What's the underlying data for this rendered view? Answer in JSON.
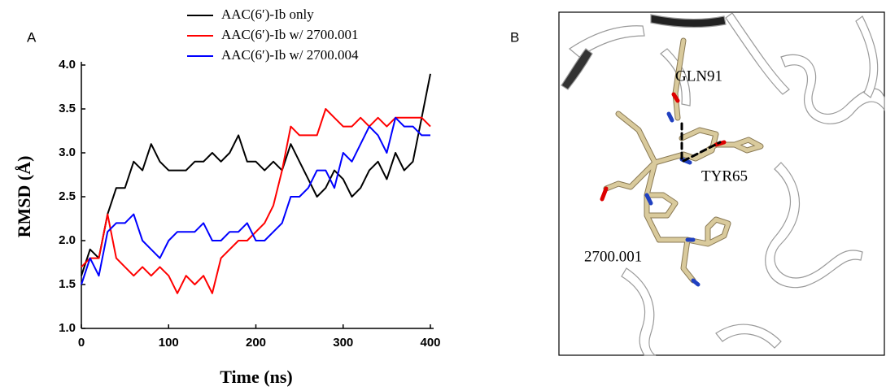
{
  "panel_labels": [
    "A",
    "B"
  ],
  "chart_data": {
    "type": "line",
    "x_label": "Time (ns)",
    "y_label": "RMSD (Å)",
    "x": [
      0,
      10,
      20,
      30,
      40,
      50,
      60,
      70,
      80,
      90,
      100,
      110,
      120,
      130,
      140,
      150,
      160,
      170,
      180,
      190,
      200,
      210,
      220,
      230,
      240,
      250,
      260,
      270,
      280,
      290,
      300,
      310,
      320,
      330,
      340,
      350,
      360,
      370,
      380,
      390,
      400
    ],
    "series": [
      {
        "name": "AAC(6′)-Ib only",
        "color": "#000000",
        "values": [
          1.6,
          1.9,
          1.8,
          2.3,
          2.6,
          2.6,
          2.9,
          2.8,
          3.1,
          2.9,
          2.8,
          2.8,
          2.8,
          2.9,
          2.9,
          3.0,
          2.9,
          3.0,
          3.2,
          2.9,
          2.9,
          2.8,
          2.9,
          2.8,
          3.1,
          2.9,
          2.7,
          2.5,
          2.6,
          2.8,
          2.7,
          2.5,
          2.6,
          2.8,
          2.9,
          2.7,
          3.0,
          2.8,
          2.9,
          3.4,
          3.9
        ]
      },
      {
        "name": "AAC(6′)-Ib w/ 2700.001",
        "color": "#ff0000",
        "values": [
          1.7,
          1.8,
          1.8,
          2.3,
          1.8,
          1.7,
          1.6,
          1.7,
          1.6,
          1.7,
          1.6,
          1.4,
          1.6,
          1.5,
          1.6,
          1.4,
          1.8,
          1.9,
          2.0,
          2.0,
          2.1,
          2.2,
          2.4,
          2.8,
          3.3,
          3.2,
          3.2,
          3.2,
          3.5,
          3.4,
          3.3,
          3.3,
          3.4,
          3.3,
          3.4,
          3.3,
          3.4,
          3.4,
          3.4,
          3.4,
          3.3
        ]
      },
      {
        "name": "AAC(6′)-Ib w/ 2700.004",
        "color": "#0000ff",
        "values": [
          1.5,
          1.8,
          1.6,
          2.1,
          2.2,
          2.2,
          2.3,
          2.0,
          1.9,
          1.8,
          2.0,
          2.1,
          2.1,
          2.1,
          2.2,
          2.0,
          2.0,
          2.1,
          2.1,
          2.2,
          2.0,
          2.0,
          2.1,
          2.2,
          2.5,
          2.5,
          2.6,
          2.8,
          2.8,
          2.6,
          3.0,
          2.9,
          3.1,
          3.3,
          3.2,
          3.0,
          3.4,
          3.3,
          3.3,
          3.2,
          3.2
        ]
      }
    ],
    "xlim": [
      0,
      400
    ],
    "xticks": [
      0,
      100,
      200,
      300,
      400
    ],
    "ylim": [
      1,
      4
    ],
    "yticks": [
      {
        "value": 1,
        "label": "1.0"
      },
      1.5,
      {
        "value": 2,
        "label": "2.0"
      },
      2.5,
      {
        "value": 3,
        "label": "3.0"
      },
      3.5,
      {
        "value": 4,
        "label": "4.0"
      }
    ],
    "grid": false,
    "legend": "above"
  },
  "structure": {
    "labels": [
      "GLN91",
      "TYR65",
      "2700.001"
    ]
  }
}
